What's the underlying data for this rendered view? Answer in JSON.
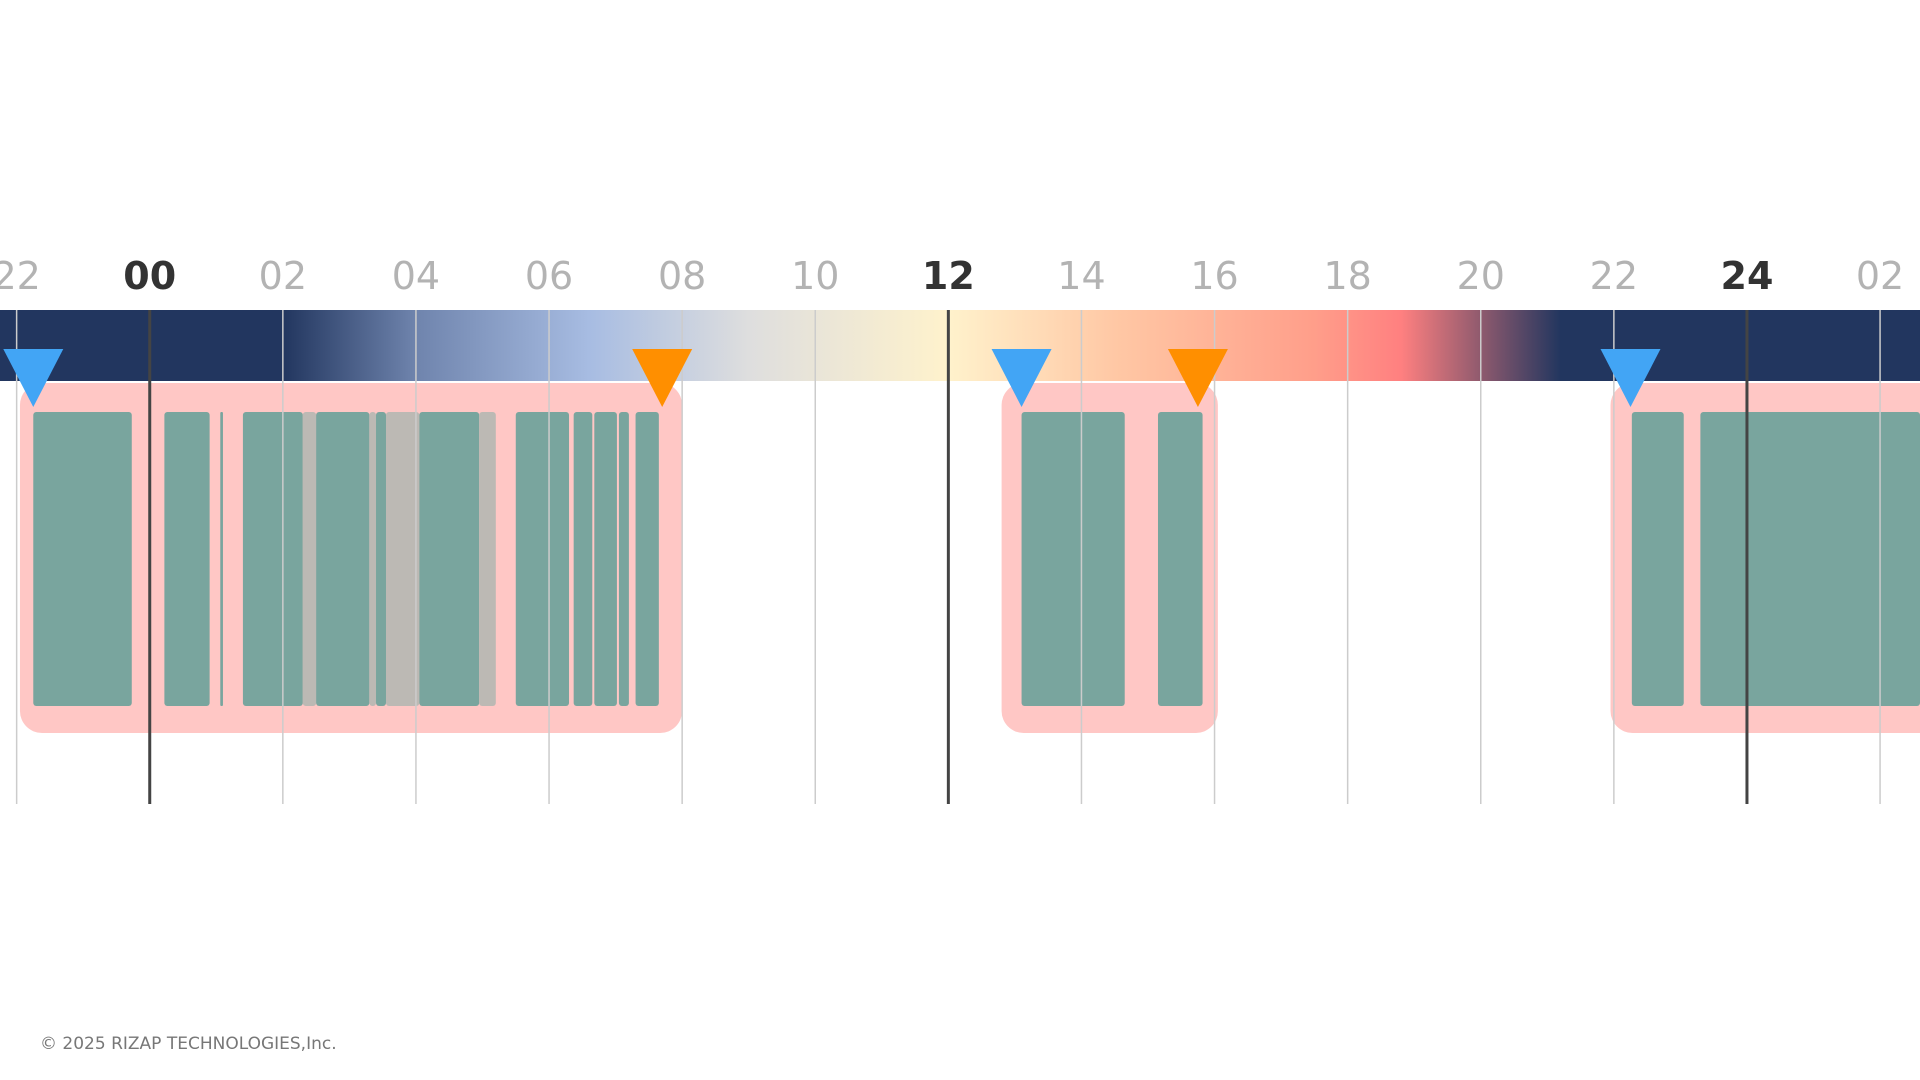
{
  "chart_data": {
    "type": "timeline",
    "title": "",
    "xlabel": "",
    "ylabel": "",
    "x_unit": "hour",
    "xlim": [
      -2.25,
      26.6
    ],
    "ticks": [
      {
        "hour": -2,
        "label": "22",
        "major": false
      },
      {
        "hour": 0,
        "label": "00",
        "major": true
      },
      {
        "hour": 2,
        "label": "02",
        "major": false
      },
      {
        "hour": 4,
        "label": "04",
        "major": false
      },
      {
        "hour": 6,
        "label": "06",
        "major": false
      },
      {
        "hour": 8,
        "label": "08",
        "major": false
      },
      {
        "hour": 10,
        "label": "10",
        "major": false
      },
      {
        "hour": 12,
        "label": "12",
        "major": true
      },
      {
        "hour": 14,
        "label": "14",
        "major": false
      },
      {
        "hour": 16,
        "label": "16",
        "major": false
      },
      {
        "hour": 18,
        "label": "18",
        "major": false
      },
      {
        "hour": 20,
        "label": "20",
        "major": false
      },
      {
        "hour": 22,
        "label": "22",
        "major": false
      },
      {
        "hour": 24,
        "label": "24",
        "major": true
      },
      {
        "hour": 26,
        "label": "02",
        "major": false
      }
    ],
    "daylight_gradient": [
      {
        "hour": -2.25,
        "color": "#22365f"
      },
      {
        "hour": 2.0,
        "color": "#22365f"
      },
      {
        "hour": 4.0,
        "color": "#6f84ad"
      },
      {
        "hour": 6.6,
        "color": "#a7bce2"
      },
      {
        "hour": 9.0,
        "color": "#dedede"
      },
      {
        "hour": 12.0,
        "color": "#fff2cc"
      },
      {
        "hour": 14.5,
        "color": "#ffc8a5"
      },
      {
        "hour": 17.5,
        "color": "#ff9e8a"
      },
      {
        "hour": 18.8,
        "color": "#ff8080"
      },
      {
        "hour": 20.0,
        "color": "#8f5a6e"
      },
      {
        "hour": 21.2,
        "color": "#22365f"
      },
      {
        "hour": 26.6,
        "color": "#22365f"
      }
    ],
    "sleep_periods": [
      {
        "start": -1.95,
        "end": 8.0,
        "bed_marker": -1.75,
        "wake_marker": 7.7,
        "segments": [
          {
            "start": -1.75,
            "end": -0.27,
            "state": "asleep"
          },
          {
            "start": 0.22,
            "end": 0.9,
            "state": "asleep"
          },
          {
            "start": 1.06,
            "end": 1.1,
            "state": "asleep"
          },
          {
            "start": 1.4,
            "end": 2.3,
            "state": "asleep"
          },
          {
            "start": 2.3,
            "end": 2.5,
            "state": "awake"
          },
          {
            "start": 2.5,
            "end": 3.3,
            "state": "asleep"
          },
          {
            "start": 3.3,
            "end": 3.4,
            "state": "awake"
          },
          {
            "start": 3.4,
            "end": 3.55,
            "state": "asleep"
          },
          {
            "start": 3.55,
            "end": 4.05,
            "state": "awake"
          },
          {
            "start": 4.05,
            "end": 4.95,
            "state": "asleep"
          },
          {
            "start": 4.95,
            "end": 5.2,
            "state": "awake"
          },
          {
            "start": 5.5,
            "end": 6.3,
            "state": "asleep"
          },
          {
            "start": 6.37,
            "end": 6.65,
            "state": "asleep"
          },
          {
            "start": 6.68,
            "end": 7.02,
            "state": "asleep"
          },
          {
            "start": 7.05,
            "end": 7.2,
            "state": "asleep"
          },
          {
            "start": 7.3,
            "end": 7.65,
            "state": "asleep"
          }
        ]
      },
      {
        "start": 12.8,
        "end": 16.05,
        "bed_marker": 13.1,
        "wake_marker": 15.75,
        "segments": [
          {
            "start": 13.1,
            "end": 14.65,
            "state": "asleep"
          },
          {
            "start": 15.15,
            "end": 15.82,
            "state": "asleep"
          }
        ]
      },
      {
        "start": 21.95,
        "end": 26.6,
        "bed_marker": 22.25,
        "wake_marker": null,
        "segments": [
          {
            "start": 22.27,
            "end": 23.05,
            "state": "asleep"
          },
          {
            "start": 23.3,
            "end": 26.6,
            "state": "asleep"
          }
        ]
      }
    ],
    "colors": {
      "background": "#ffffff",
      "period_bg": "#ffc7c5",
      "asleep": "#79a59e",
      "awake": "#bcb9b4",
      "bed_marker": "#42a5f5",
      "wake_marker": "#ff8f00",
      "gridline": "#cccccc",
      "gridline_major": "#444444",
      "tick_label": "#b3b3b3",
      "tick_label_major": "#333333"
    }
  },
  "footer": {
    "copyright": "© 2025 RIZAP TECHNOLOGIES,Inc."
  }
}
